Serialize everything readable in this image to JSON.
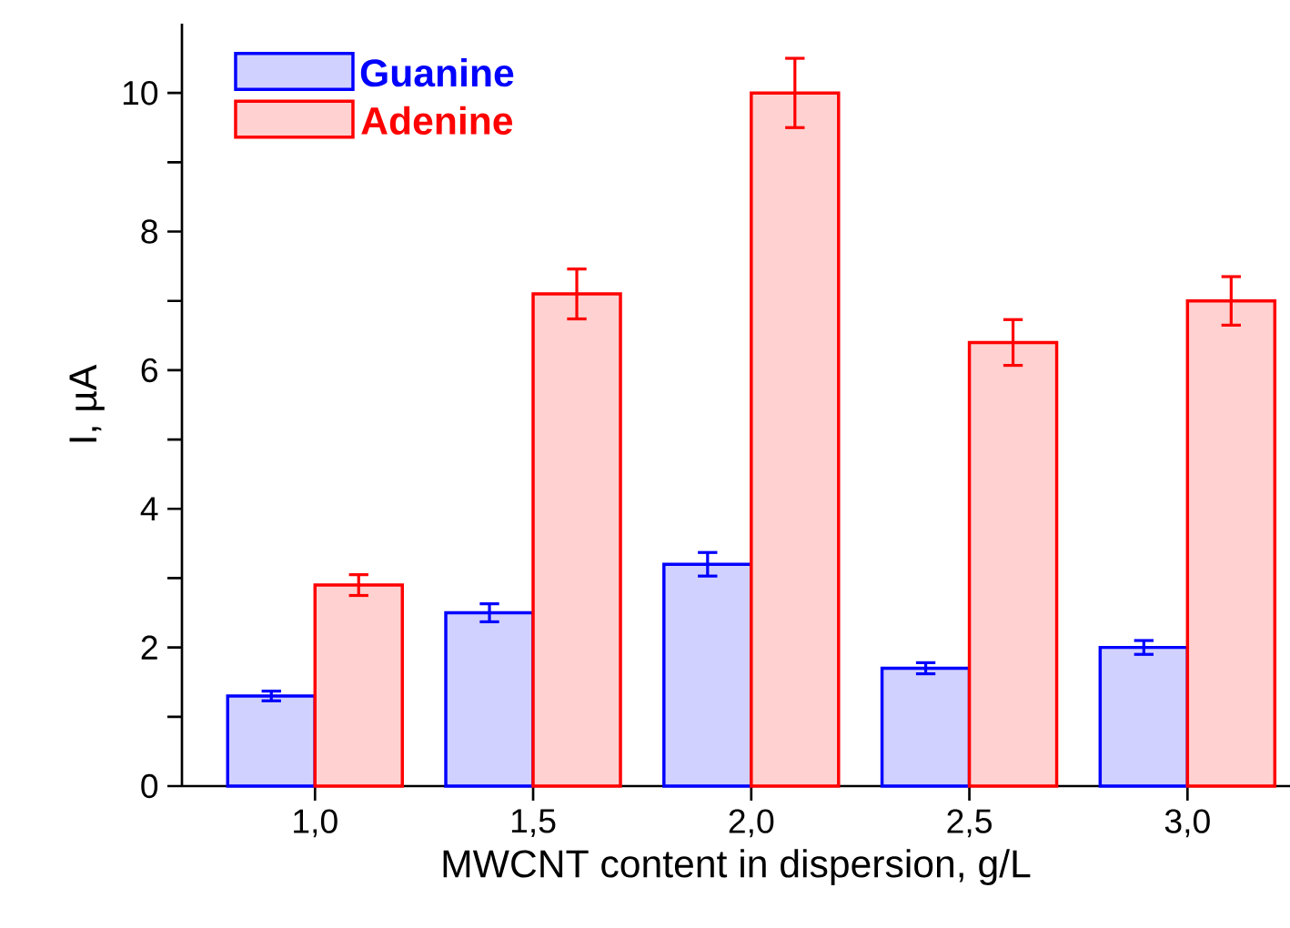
{
  "chart_data": {
    "type": "bar",
    "xlabel": "MWCNT content in dispersion, g/L",
    "ylabel": "I, µA",
    "categories": [
      "1,0",
      "1,5",
      "2,0",
      "2,5",
      "3,0"
    ],
    "series": [
      {
        "name": "Guanine",
        "color": "#0000ff",
        "values": [
          1.3,
          2.5,
          3.2,
          1.7,
          2.0
        ],
        "errors": [
          0.07,
          0.13,
          0.17,
          0.08,
          0.1
        ]
      },
      {
        "name": "Adenine",
        "color": "#ff0000",
        "values": [
          2.9,
          7.1,
          10.0,
          6.4,
          7.0
        ],
        "errors": [
          0.15,
          0.36,
          0.5,
          0.33,
          0.35
        ]
      }
    ],
    "ylim": [
      0,
      11
    ],
    "yticks": [
      0,
      {
        "value": 1,
        "label": null
      },
      2,
      {
        "value": 3,
        "label": null
      },
      4,
      {
        "value": 5,
        "label": null
      },
      6,
      {
        "value": 7,
        "label": null
      },
      8,
      {
        "value": 9,
        "label": null
      },
      10
    ],
    "legend": "top left",
    "grid": false
  }
}
